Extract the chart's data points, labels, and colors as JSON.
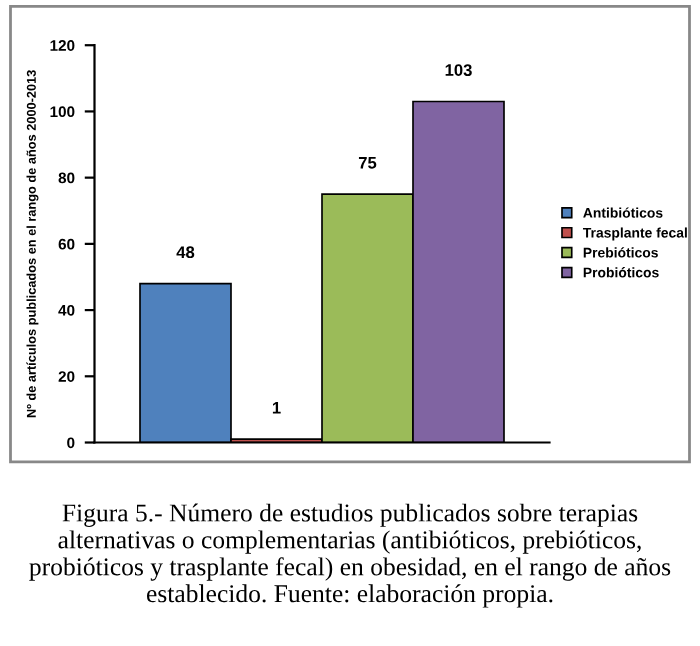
{
  "chart_data": {
    "type": "bar",
    "ylabel": "Nº de artículos publicados en el rango de años 2000-2013",
    "categories": [
      null
    ],
    "series": [
      {
        "name": "Antibióticos",
        "color": "#4f81bd",
        "values": [
          48
        ]
      },
      {
        "name": "Trasplante fecal",
        "color": "#c0504d",
        "values": [
          1
        ]
      },
      {
        "name": "Prebióticos",
        "color": "#9bbb59",
        "values": [
          75
        ]
      },
      {
        "name": "Probióticos",
        "color": "#8064a2",
        "values": [
          103
        ]
      }
    ],
    "ylim": [
      0,
      120
    ],
    "yticks": [
      0,
      20,
      40,
      60,
      80,
      100,
      120
    ],
    "data_labels": true,
    "grid": false,
    "legend": "right",
    "annotations": [
      "Figura 5.- Número de estudios publicados sobre terapias alternativas o complementarias (antibióticos, prebióticos, probióticos y trasplante fecal) en obesidad, en el rango de años establecido. Fuente: elaboración propia."
    ]
  }
}
